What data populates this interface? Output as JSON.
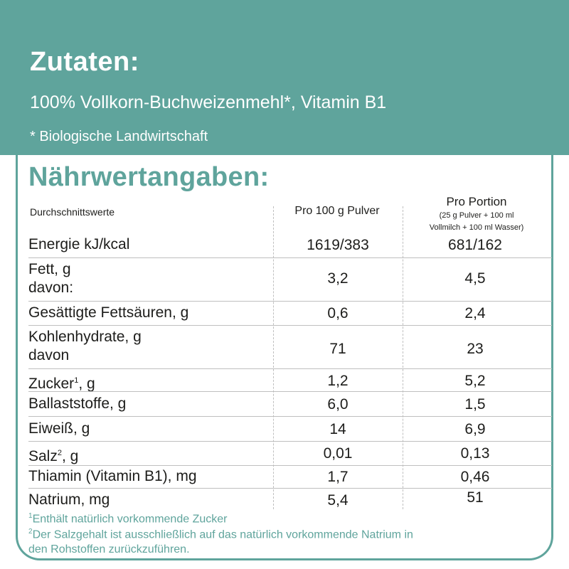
{
  "header": {
    "title": "Zutaten:",
    "ingredients": "100% Vollkorn-Buchweizenmehl*, Vitamin B1",
    "footnote": "* Biologische Landwirtschaft"
  },
  "nutrition": {
    "title": "Nährwertangaben:",
    "columns": {
      "label": "Durchschnittswerte",
      "per_100g": "Pro 100 g Pulver",
      "per_portion": "Pro Portion",
      "per_portion_note_1": "(25 g Pulver + 100 ml",
      "per_portion_note_2": "Vollmilch + 100 ml Wasser)"
    },
    "rows": [
      {
        "label": "Energie kJ/kcal",
        "v1": "1619/383",
        "v2": "681/162"
      },
      {
        "label": "Fett, g",
        "label2": "davon:",
        "v1": "3,2",
        "v2": "4,5"
      },
      {
        "label": "Gesättigte Fettsäuren, g",
        "v1": "0,6",
        "v2": "2,4"
      },
      {
        "label": "Kohlenhydrate, g",
        "label2": "davon",
        "v1": "71",
        "v2": "23"
      },
      {
        "label": "Zucker",
        "sup": "1",
        "label_suffix": ", g",
        "v1": "1,2",
        "v2": "5,2"
      },
      {
        "label": "Ballaststoffe, g",
        "v1": "6,0",
        "v2": "1,5"
      },
      {
        "label": "Eiweiß, g",
        "v1": "14",
        "v2": "6,9"
      },
      {
        "label": "Salz",
        "sup": "2",
        "label_suffix": ", g",
        "v1": "0,01",
        "v2": "0,13"
      },
      {
        "label": "Thiamin (Vitamin B1), mg",
        "v1": "1,7",
        "v2": "0,46"
      },
      {
        "label": "Natrium, mg",
        "v1": "5,4",
        "v2": "51"
      }
    ],
    "footnotes": [
      {
        "sup": "1",
        "text": "Enthält natürlich vorkommende Zucker"
      },
      {
        "sup": "2",
        "text": "Der Salzgehalt ist ausschließlich auf das natürlich vorkommende Natrium in",
        "text2": "den Rohstoffen zurückzuführen."
      }
    ]
  }
}
